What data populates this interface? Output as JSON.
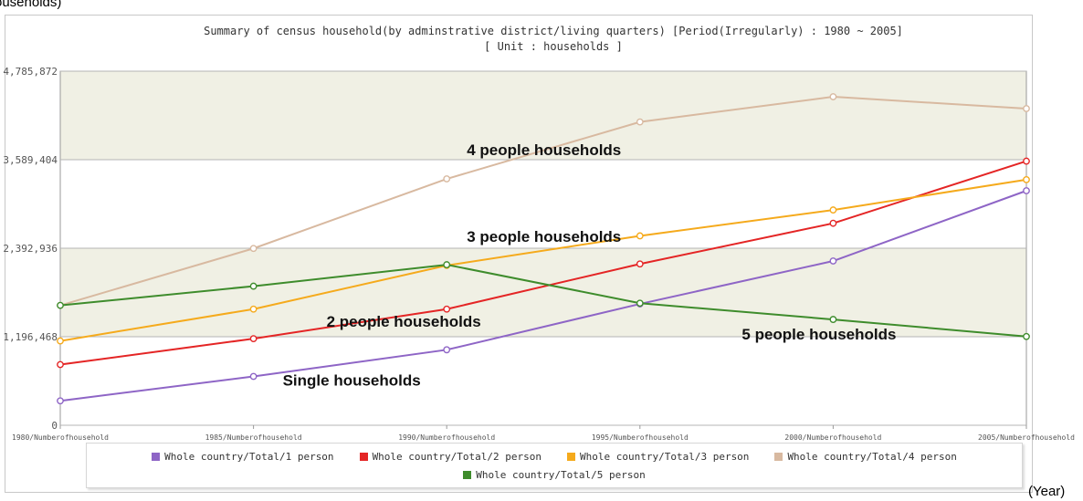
{
  "page": {
    "top_text": "ouseholds)",
    "x_unit_label": "(Year)"
  },
  "chart_data": {
    "type": "line",
    "title": "Summary of census household(by adminstrative district/living quarters)  [Period(Irregularly) : 1980 ~ 2005]",
    "subtitle": "[ Unit : households ]",
    "categories": [
      "1980/Numberofhousehold",
      "1985/Numberofhousehold",
      "1990/Numberofhousehold",
      "1995/Numberofhousehold",
      "2000/Numberofhousehold",
      "2005/Numberofhousehold"
    ],
    "ylim": [
      0,
      4785872
    ],
    "yticks": [
      "4,785,872",
      "3,589,404",
      "2,392,936",
      "1,196,468",
      "0"
    ],
    "ytick_values": [
      4785872,
      3589404,
      2392936,
      1196468,
      0
    ],
    "grid": true,
    "legend_position": "bottom",
    "series": [
      {
        "name": "Whole country/Total/1 person",
        "color": "#8e65c6",
        "values": [
          330000,
          660000,
          1020000,
          1640000,
          2220000,
          3170000
        ]
      },
      {
        "name": "Whole country/Total/2 person",
        "color": "#e42525",
        "values": [
          820000,
          1170000,
          1570000,
          2180000,
          2730000,
          3570000
        ]
      },
      {
        "name": "Whole country/Total/3 person",
        "color": "#f5aa1c",
        "values": [
          1140000,
          1570000,
          2160000,
          2560000,
          2910000,
          3320000
        ]
      },
      {
        "name": "Whole country/Total/4 person",
        "color": "#d8b9a0",
        "values": [
          1620000,
          2390000,
          3330000,
          4100000,
          4440000,
          4280000
        ]
      },
      {
        "name": "Whole country/Total/5 person",
        "color": "#3e8c2c",
        "values": [
          1620000,
          1880000,
          2170000,
          1650000,
          1430000,
          1200000
        ]
      }
    ],
    "annotations": [
      {
        "text": "4 people households"
      },
      {
        "text": "3 people households"
      },
      {
        "text": "2 people households"
      },
      {
        "text": "5 people households"
      },
      {
        "text": "Single households"
      }
    ]
  }
}
